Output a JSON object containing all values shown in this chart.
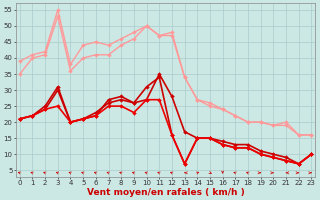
{
  "bg_color": "#cce8e4",
  "grid_color": "#aacccc",
  "xlabel": "Vent moyen/en rafales ( km/h )",
  "xlabel_color": "#cc0000",
  "yticks": [
    5,
    10,
    15,
    20,
    25,
    30,
    35,
    40,
    45,
    50,
    55
  ],
  "xticks": [
    0,
    1,
    2,
    3,
    4,
    5,
    6,
    7,
    8,
    9,
    10,
    11,
    12,
    13,
    14,
    15,
    16,
    17,
    18,
    19,
    20,
    21,
    22,
    23
  ],
  "ylim": [
    3,
    57
  ],
  "xlim": [
    -0.3,
    23.3
  ],
  "series": [
    {
      "x": [
        0,
        1,
        2,
        3,
        4,
        5,
        6,
        7,
        8,
        9,
        10,
        11,
        12,
        13,
        14,
        15,
        16,
        17,
        18,
        19,
        20,
        21,
        22,
        23
      ],
      "y": [
        35,
        40,
        41,
        53,
        36,
        40,
        41,
        41,
        44,
        46,
        50,
        47,
        48,
        34,
        27,
        25,
        24,
        22,
        20,
        20,
        19,
        20,
        16,
        16
      ],
      "color": "#ff9999",
      "lw": 1.0,
      "ms": 2.0
    },
    {
      "x": [
        0,
        1,
        2,
        3,
        4,
        5,
        6,
        7,
        8,
        9,
        10,
        11,
        12,
        13,
        14,
        15,
        16,
        17,
        18,
        19,
        20,
        21,
        22,
        23
      ],
      "y": [
        39,
        41,
        42,
        55,
        38,
        44,
        45,
        44,
        46,
        48,
        50,
        47,
        47,
        34,
        27,
        26,
        24,
        22,
        20,
        20,
        19,
        19,
        16,
        16
      ],
      "color": "#ff9999",
      "lw": 1.0,
      "ms": 2.0
    },
    {
      "x": [
        0,
        1,
        2,
        3,
        4,
        5,
        6,
        7,
        8,
        9,
        10,
        11,
        12,
        13,
        14,
        15,
        16,
        17,
        18,
        19,
        20,
        21,
        22,
        23
      ],
      "y": [
        21,
        22,
        25,
        31,
        20,
        21,
        23,
        26,
        27,
        26,
        27,
        35,
        28,
        17,
        15,
        15,
        14,
        13,
        13,
        11,
        10,
        9,
        7,
        10
      ],
      "color": "#cc0000",
      "lw": 1.2,
      "ms": 2.0
    },
    {
      "x": [
        0,
        1,
        2,
        3,
        4,
        5,
        6,
        7,
        8,
        9,
        10,
        11,
        12,
        13,
        14,
        15,
        16,
        17,
        18,
        19,
        20,
        21,
        22,
        23
      ],
      "y": [
        21,
        22,
        24,
        30,
        20,
        21,
        22,
        27,
        28,
        26,
        31,
        34,
        16,
        7,
        15,
        15,
        13,
        12,
        12,
        10,
        9,
        8,
        7,
        10
      ],
      "color": "#cc0000",
      "lw": 1.2,
      "ms": 2.0
    },
    {
      "x": [
        0,
        1,
        2,
        3,
        4,
        5,
        6,
        7,
        8,
        9,
        10,
        11,
        12,
        13,
        14,
        15,
        16,
        17,
        18,
        19,
        20,
        21,
        22,
        23
      ],
      "y": [
        21,
        22,
        24,
        25,
        20,
        21,
        22,
        25,
        25,
        23,
        27,
        27,
        16,
        7,
        15,
        15,
        13,
        12,
        12,
        10,
        9,
        8,
        7,
        10
      ],
      "color": "#ee0000",
      "lw": 1.2,
      "ms": 2.0
    }
  ],
  "arrow_color": "#cc0000",
  "axis_fontsize": 6.5,
  "tick_fontsize": 5.0,
  "arrow_angles": [
    225,
    225,
    225,
    225,
    225,
    225,
    225,
    225,
    225,
    225,
    225,
    225,
    225,
    270,
    135,
    45,
    0,
    225,
    225,
    90,
    90,
    270,
    90,
    90
  ]
}
